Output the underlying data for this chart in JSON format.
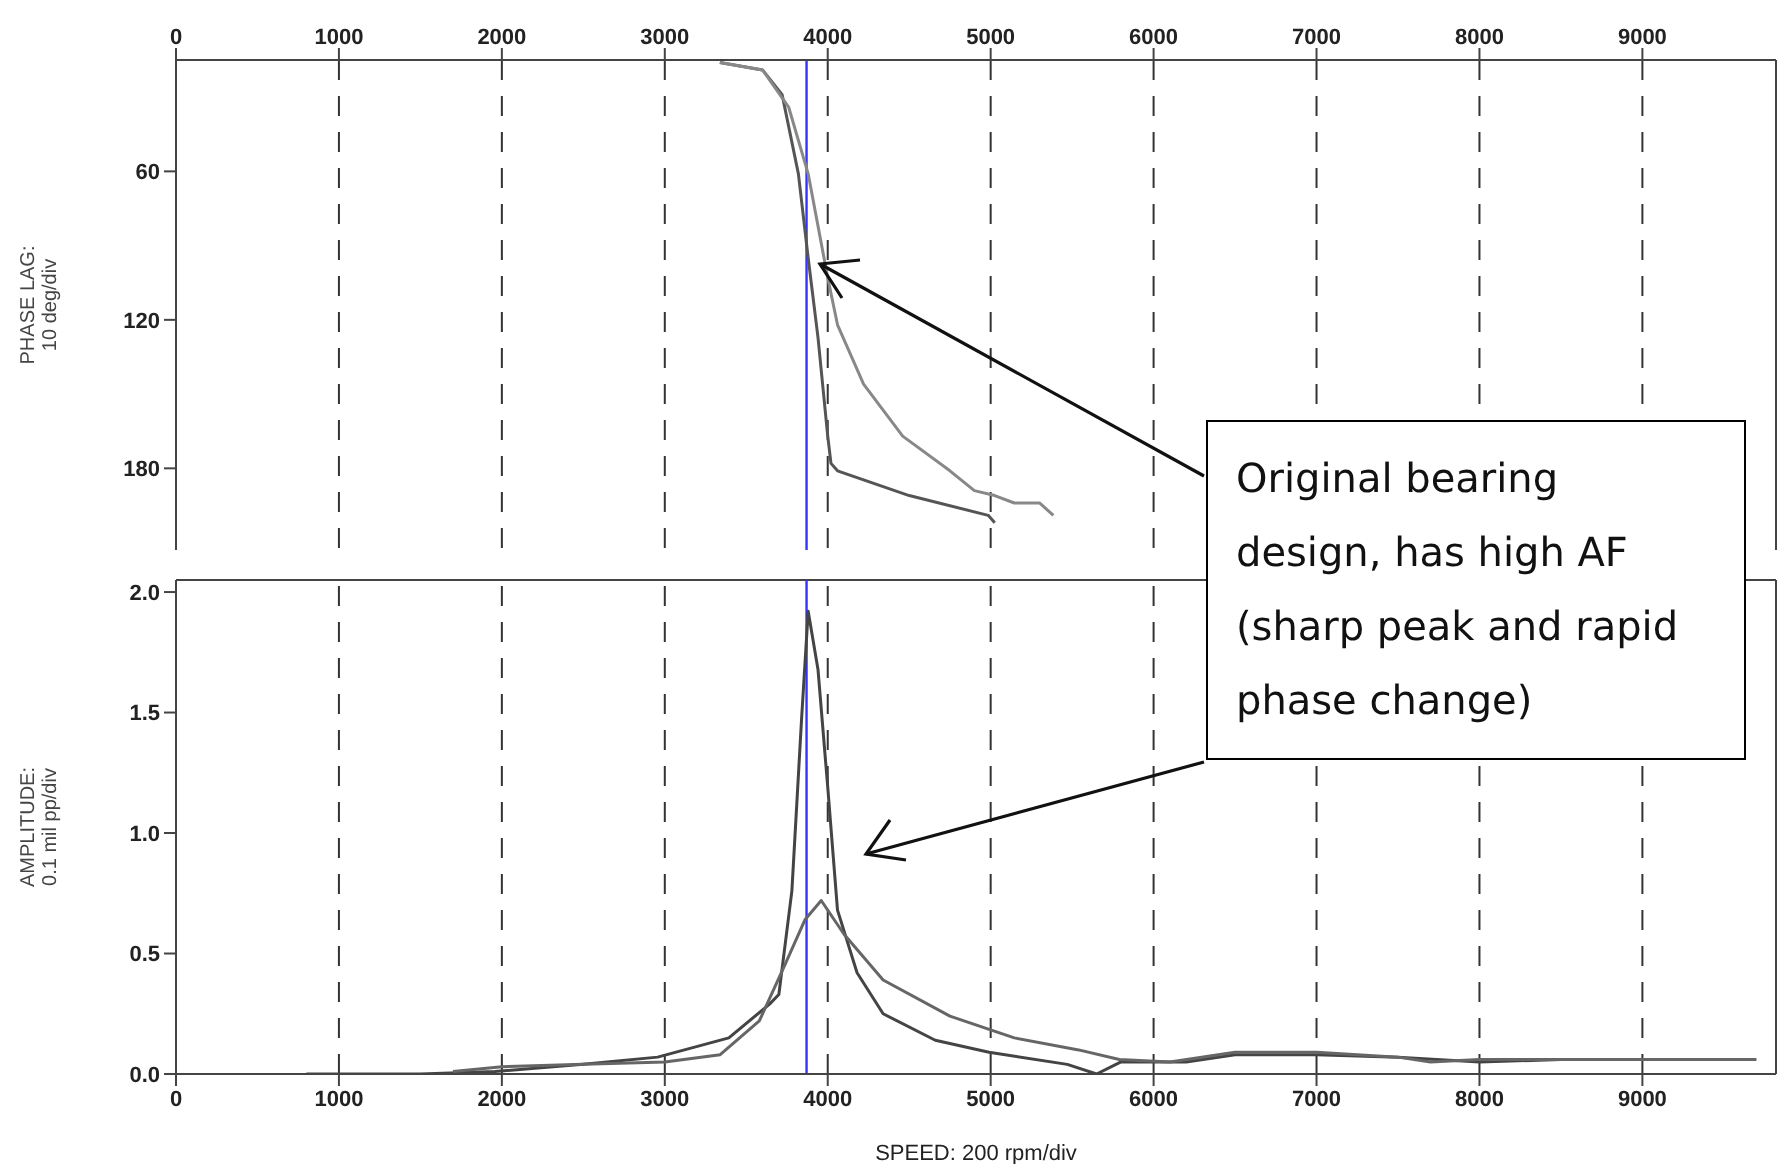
{
  "chart_data": [
    {
      "type": "line",
      "ylabel": "PHASE LAG:\n10 deg/div",
      "xlim": [
        0,
        9820
      ],
      "xticks": [
        0,
        1000,
        2000,
        3000,
        4000,
        5000,
        6000,
        7000,
        8000,
        9000
      ],
      "ylim": [
        213,
        15
      ],
      "yticks": [
        60,
        120,
        180
      ],
      "grid": "x",
      "line_style": "solid",
      "series": [
        {
          "color": "#555555",
          "x": [
            3338,
            3600,
            3720,
            3820,
            3880,
            3940,
            4000,
            4020,
            4060,
            4500,
            4985,
            5025
          ],
          "values": [
            16,
            19,
            29,
            61,
            95,
            127,
            167,
            178,
            181,
            191,
            199,
            202
          ]
        },
        {
          "color": "#888888",
          "x": [
            3338,
            3600,
            3760,
            3880,
            3940,
            4000,
            4060,
            4220,
            4460,
            4750,
            4900,
            5025,
            5145,
            5300,
            5385
          ],
          "values": [
            16,
            19,
            34,
            61,
            82,
            103,
            122,
            146,
            167,
            181,
            189,
            191,
            194,
            194,
            199
          ]
        }
      ],
      "ref_lines": [
        {
          "axis": "x",
          "value": 3870,
          "color": "#3333ff"
        }
      ]
    },
    {
      "type": "line",
      "ylabel": "AMPLITUDE:\n0.1 mil pp/div",
      "xlabel": "SPEED: 200 rpm/div",
      "xlim": [
        0,
        9820
      ],
      "xticks": [
        0,
        1000,
        2000,
        3000,
        4000,
        5000,
        6000,
        7000,
        8000,
        9000
      ],
      "ylim": [
        0,
        2.05
      ],
      "yticks": [
        {
          "value": 0,
          "label": "0.0"
        },
        0.5,
        {
          "value": 1,
          "label": "1.0"
        },
        1.5,
        {
          "value": 2,
          "label": "2.0"
        }
      ],
      "grid": "x",
      "line_style": "solid",
      "series": [
        {
          "color": "#444444",
          "x": [
            800,
            1500,
            1957,
            2500,
            2956,
            3393,
            3643,
            3700,
            3780,
            3840,
            3880,
            3940,
            4000,
            4060,
            4180,
            4340,
            4660,
            4990,
            5470,
            5650,
            5800,
            6200,
            6500,
            7000,
            7500,
            8000,
            8500,
            9000,
            9500
          ],
          "values": [
            0,
            0,
            0.01,
            0.04,
            0.07,
            0.15,
            0.29,
            0.33,
            0.76,
            1.48,
            1.92,
            1.68,
            1.19,
            0.68,
            0.42,
            0.25,
            0.14,
            0.09,
            0.04,
            0,
            0.05,
            0.05,
            0.08,
            0.08,
            0.07,
            0.05,
            0.06,
            0.06,
            0.06
          ]
        },
        {
          "color": "#666666",
          "x": [
            1700,
            2000,
            2500,
            3000,
            3340,
            3580,
            3735,
            3860,
            3960,
            4100,
            4340,
            4750,
            5145,
            5540,
            5790,
            6100,
            6500,
            7000,
            7500,
            7700,
            8000,
            9000,
            9700
          ],
          "values": [
            0.01,
            0.03,
            0.04,
            0.05,
            0.08,
            0.22,
            0.45,
            0.64,
            0.72,
            0.58,
            0.39,
            0.24,
            0.15,
            0.1,
            0.06,
            0.05,
            0.09,
            0.09,
            0.07,
            0.05,
            0.06,
            0.06,
            0.06
          ]
        }
      ],
      "ref_lines": [
        {
          "axis": "x",
          "value": 3870,
          "color": "#3333ff"
        }
      ],
      "annotations": [
        "Original bearing design, has high AF (sharp peak and rapid phase change)"
      ]
    }
  ]
}
